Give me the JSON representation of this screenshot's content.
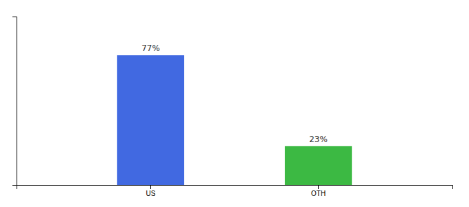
{
  "chart_data": {
    "type": "bar",
    "categories": [
      "US",
      "OTH"
    ],
    "values": [
      77,
      23
    ],
    "value_labels": [
      "77%",
      "23%"
    ],
    "colors": [
      "#4169E1",
      "#3CB943"
    ],
    "ylim": [
      0,
      100
    ],
    "data_labels": true,
    "tick_labels": "x"
  }
}
